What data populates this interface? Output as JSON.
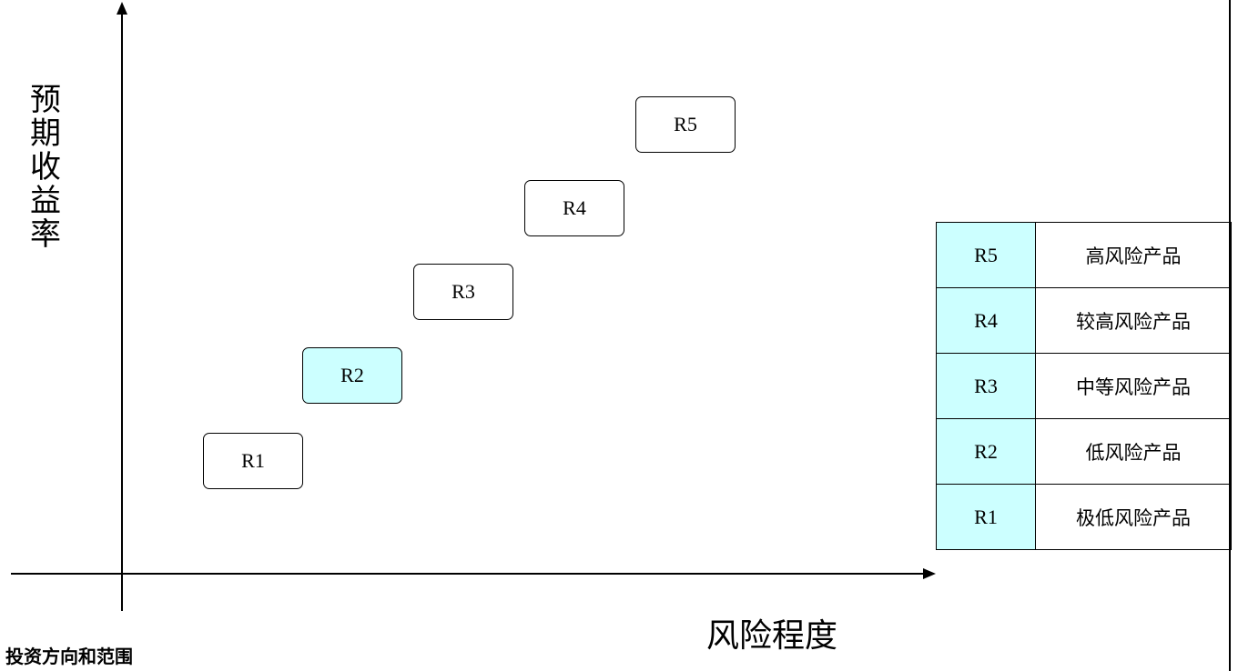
{
  "diagram": {
    "y_axis_label": "预期收益率",
    "x_axis_label": "风险程度",
    "boxes": [
      {
        "label": "R1",
        "highlighted": false
      },
      {
        "label": "R2",
        "highlighted": true
      },
      {
        "label": "R3",
        "highlighted": false
      },
      {
        "label": "R4",
        "highlighted": false
      },
      {
        "label": "R5",
        "highlighted": false
      }
    ],
    "highlight_color": "#ccffff"
  },
  "legend": [
    {
      "code": "R5",
      "description": "高风险产品"
    },
    {
      "code": "R4",
      "description": "较高风险产品"
    },
    {
      "code": "R3",
      "description": "中等风险产品"
    },
    {
      "code": "R2",
      "description": "低风险产品"
    },
    {
      "code": "R1",
      "description": "极低风险产品"
    }
  ],
  "section_heading": "投资方向和范围"
}
